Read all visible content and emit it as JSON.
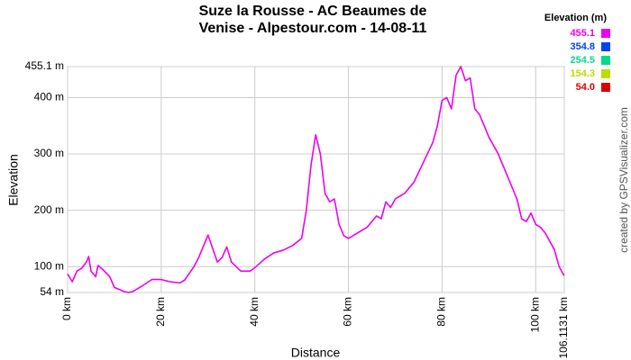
{
  "chart_data": {
    "type": "line",
    "title": [
      "Suze la Rousse - AC Beaumes de",
      "Venise - Alpestour.com - 14-08-11"
    ],
    "x_label": "Distance",
    "y_label": "Elevation",
    "credit": "created by GPSVisualizer.com",
    "x": [
      0,
      1,
      2,
      3,
      4,
      4.5,
      5,
      6,
      6.5,
      7.5,
      9,
      10,
      12,
      13,
      14,
      16,
      18,
      20,
      22,
      24,
      25,
      27,
      28,
      30,
      31,
      32,
      33,
      34,
      35,
      37,
      39,
      40,
      42,
      44,
      46,
      48,
      50,
      51,
      52,
      53,
      54,
      55,
      56,
      57,
      58,
      59,
      60,
      62,
      64,
      66,
      67,
      68,
      69,
      70,
      72,
      74,
      76,
      78,
      79,
      80,
      81,
      82,
      83,
      84,
      85,
      86,
      87,
      88,
      90,
      92,
      94,
      96,
      97,
      98,
      99,
      100,
      101,
      102,
      104,
      105,
      106,
      106.1131
    ],
    "values": [
      87,
      73,
      92,
      97,
      108,
      118,
      92,
      82,
      102,
      95,
      82,
      63,
      56,
      54,
      56,
      66,
      77,
      77,
      73,
      71,
      76,
      100,
      116,
      156,
      132,
      108,
      116,
      135,
      108,
      92,
      92,
      98,
      113,
      124,
      129,
      137,
      150,
      200,
      280,
      334,
      300,
      230,
      215,
      220,
      175,
      155,
      150,
      160,
      170,
      190,
      185,
      215,
      205,
      220,
      230,
      250,
      285,
      320,
      350,
      395,
      400,
      380,
      440,
      455.1,
      430,
      435,
      380,
      370,
      330,
      300,
      260,
      220,
      185,
      180,
      195,
      175,
      170,
      160,
      130,
      100,
      85,
      84
    ],
    "xlim": [
      0,
      106.1131
    ],
    "xticks": [
      {
        "value": 0,
        "label": "0 km"
      },
      {
        "value": 20,
        "label": "20 km"
      },
      {
        "value": 40,
        "label": "40 km"
      },
      {
        "value": 60,
        "label": "60 km"
      },
      {
        "value": 80,
        "label": "80 km"
      },
      {
        "value": 100,
        "label": "100 km"
      },
      {
        "value": 106.1131,
        "label": "106.1131 km"
      }
    ],
    "ylim": [
      54,
      455.1
    ],
    "yticks": [
      {
        "value": 54,
        "label": "54 m"
      },
      {
        "value": 100,
        "label": "100 m"
      },
      {
        "value": 200,
        "label": "200 m"
      },
      {
        "value": 300,
        "label": "300 m"
      },
      {
        "value": 400,
        "label": "400 m"
      },
      {
        "value": 455.1,
        "label": "455.1 m"
      }
    ],
    "grid": true,
    "color_scale": {
      "title": "Elevation (m)",
      "stops": [
        {
          "value": 455.1,
          "label": "455.1",
          "color": "#ee00ee"
        },
        {
          "value": 354.8,
          "label": "354.8",
          "color": "#0044ee"
        },
        {
          "value": 254.5,
          "label": "254.5",
          "color": "#00dd88"
        },
        {
          "value": 154.3,
          "label": "154.3",
          "color": "#bbdd00"
        },
        {
          "value": 54,
          "label": "54.0",
          "color": "#dd0000"
        }
      ]
    }
  }
}
